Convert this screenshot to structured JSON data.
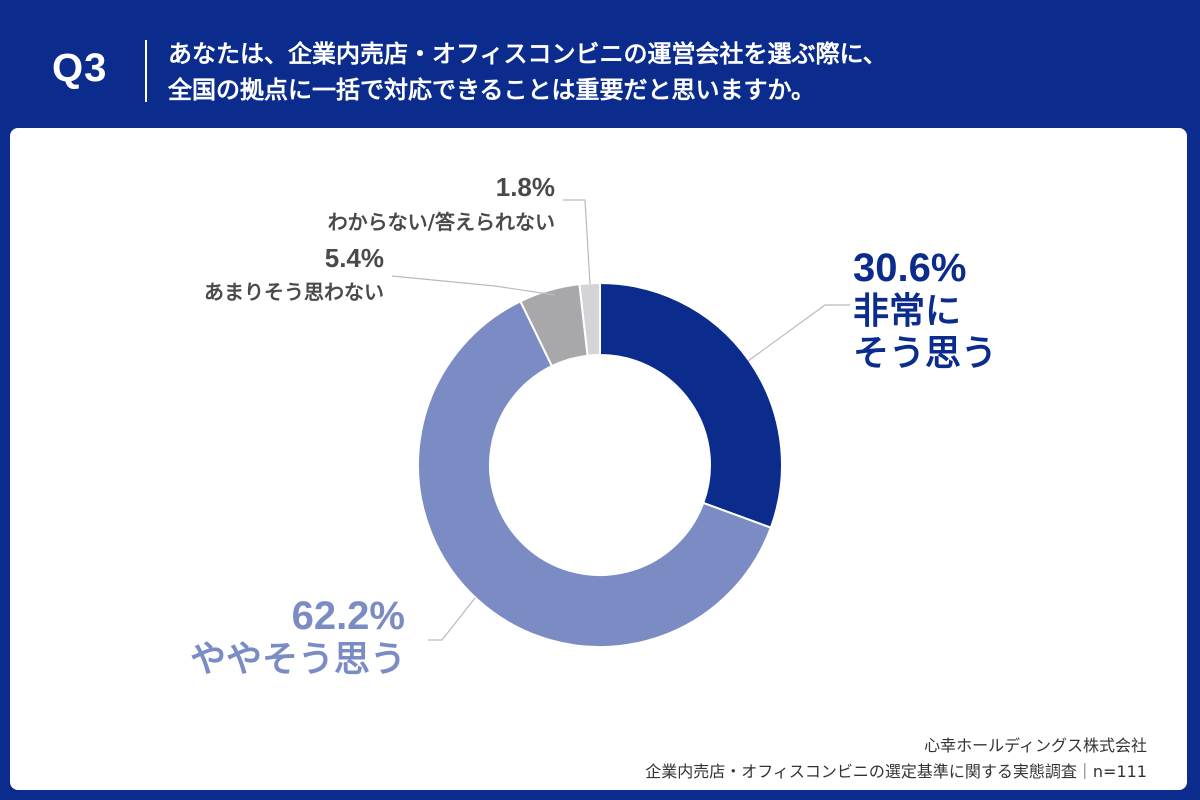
{
  "header": {
    "badge": "Q3",
    "question_line1": "あなたは、企業内売店・オフィスコンビニの運営会社を選ぶ際に、",
    "question_line2": "全国の拠点に一括で対応できることは重要だと思いますか。"
  },
  "chart_data": {
    "type": "pie",
    "donut": true,
    "slices": [
      {
        "pct": "30.6%",
        "value": 30.6,
        "label_line1": "非常に",
        "label_line2": "そう思う",
        "color": "#0b2c8c"
      },
      {
        "pct": "62.2%",
        "value": 62.2,
        "label_line1": "ややそう思う",
        "color": "#7b8cc4"
      },
      {
        "pct": "5.4%",
        "value": 5.4,
        "label_line1": "あまりそう思わない",
        "color": "#a8a8aa"
      },
      {
        "pct": "1.8%",
        "value": 1.8,
        "label_line1": "わからない/答えられない",
        "color": "#d4d4d6"
      }
    ]
  },
  "footer": {
    "company": "心幸ホールディングス株式会社",
    "survey": "企業内売店・オフィスコンビニの選定基準に関する実態調査｜n=111"
  }
}
